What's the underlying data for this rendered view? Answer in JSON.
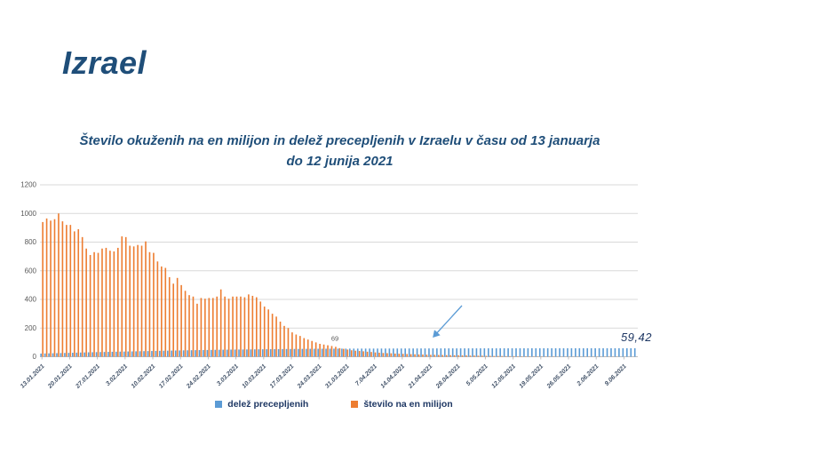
{
  "slide": {
    "title": "Izrael"
  },
  "chart": {
    "title": "Število okuženih na en milijon in delež precepljenih v Izraelu v času od 13 januarja do 12 junija 2021",
    "legend": [
      {
        "label": "delež precepljenih",
        "color": "#5B9BD5"
      },
      {
        "label": "število na en milijon",
        "color": "#ED7D31"
      }
    ]
  },
  "colors": {
    "blue": "#5B9BD5",
    "orange": "#ED7D31",
    "grid": "#D9D9D9",
    "axis": "#BFBFBF",
    "title_text": "#1F4E79",
    "legend_text": "#1F3864",
    "ytick_text": "#595959",
    "xtick_text": "#44546A"
  },
  "chart_data": {
    "type": "bar",
    "title": "Število okuženih na en milijon in delež precepljenih v Izraelu v času od 13 januarja do 12 junija 2021",
    "xlabel": "",
    "ylabel": "",
    "ylim": [
      0,
      1200
    ],
    "y_ticks": [
      0,
      200,
      400,
      600,
      800,
      1000,
      1200
    ],
    "grid": true,
    "legend_position": "bottom",
    "start_date": "13.01.2021",
    "end_date": "12.06.2021",
    "tick_every_days": 7,
    "tick_labels": [
      "13.01.2021",
      "20.01.2021",
      "27.01.2021",
      "3.02.2021",
      "10.02.2021",
      "17.02.2021",
      "24.02.2021",
      "3.03.2021",
      "10.03.2021",
      "17.03.2021",
      "24.03.2021",
      "31.03.2021",
      "7.04.2021",
      "14.04.2021",
      "21.04.2021",
      "28.04.2021",
      "5.05.2021",
      "12.05.2021",
      "19.05.2021",
      "26.05.2021",
      "2.06.2021",
      "9.06.2021"
    ],
    "series": [
      {
        "name": "delež precepljenih",
        "color": "#5B9BD5",
        "values": [
          22,
          22.8,
          23.6,
          24.3,
          25,
          25.7,
          26.4,
          27,
          27.8,
          28.5,
          29.2,
          30,
          30.7,
          31.4,
          32,
          32.6,
          33.2,
          33.8,
          34.4,
          35,
          35.5,
          36,
          36.6,
          37.2,
          37.8,
          38.4,
          39,
          39.5,
          40,
          40.6,
          41.2,
          41.8,
          42.4,
          43,
          43.5,
          44,
          44.5,
          45,
          45.4,
          45.9,
          46.3,
          46.7,
          47,
          47.5,
          48,
          48.4,
          48.9,
          49.3,
          49.7,
          50,
          50.3,
          50.6,
          50.9,
          51.2,
          51.5,
          51.8,
          52,
          52.3,
          52.6,
          52.9,
          53.2,
          53.5,
          53.8,
          54,
          54.2,
          54.4,
          54.7,
          54.9,
          55.1,
          55.3,
          55.5,
          55.7,
          55.8,
          56,
          56.1,
          56.3,
          56.4,
          56.5,
          56.6,
          56.7,
          56.8,
          56.8,
          56.9,
          57,
          57,
          57.1,
          57.2,
          57.2,
          57.3,
          57.4,
          57.5,
          57.5,
          57.6,
          57.7,
          57.7,
          57.8,
          57.9,
          58,
          58,
          58.1,
          58.1,
          58.2,
          58.2,
          58.3,
          58.3,
          58.3,
          58.4,
          58.4,
          58.5,
          58.5,
          58.6,
          58.6,
          58.6,
          58.7,
          58.7,
          58.7,
          58.8,
          58.8,
          58.8,
          58.8,
          58.9,
          58.9,
          58.9,
          59,
          59,
          59,
          59,
          59,
          59.1,
          59.1,
          59.1,
          59.1,
          59.1,
          59.1,
          59.2,
          59.2,
          59.2,
          59.2,
          59.2,
          59.3,
          59.3,
          59.3,
          59.3,
          59.3,
          59.4,
          59.4,
          59.4,
          59.4,
          59.4,
          59.4,
          59.42
        ]
      },
      {
        "name": "število na en milijon",
        "color": "#ED7D31",
        "values": [
          940,
          965,
          950,
          960,
          1000,
          945,
          920,
          920,
          875,
          890,
          835,
          755,
          710,
          730,
          725,
          755,
          760,
          740,
          735,
          760,
          840,
          835,
          775,
          770,
          780,
          775,
          805,
          730,
          725,
          665,
          630,
          620,
          555,
          510,
          550,
          500,
          460,
          430,
          420,
          370,
          410,
          405,
          410,
          410,
          420,
          470,
          420,
          405,
          420,
          420,
          420,
          415,
          435,
          425,
          415,
          385,
          350,
          330,
          300,
          280,
          245,
          215,
          200,
          170,
          155,
          145,
          130,
          120,
          110,
          100,
          90,
          85,
          80,
          75,
          69,
          60,
          55,
          50,
          45,
          42,
          40,
          38,
          35,
          33,
          30,
          28,
          26,
          25,
          24,
          22,
          21,
          20,
          19,
          18,
          17,
          16,
          15,
          14,
          13,
          13,
          12,
          12,
          11,
          11,
          10,
          10,
          9,
          9,
          8,
          8,
          7,
          7,
          6,
          6,
          5,
          5,
          5,
          4,
          4,
          4,
          3,
          3,
          3,
          3,
          2,
          2,
          2,
          2,
          2,
          2,
          1,
          1,
          1,
          1,
          1,
          1,
          1,
          1,
          1,
          1,
          1,
          1,
          1,
          1,
          1,
          1,
          0,
          0,
          0,
          0,
          0
        ]
      }
    ],
    "annotations": [
      {
        "text": "69",
        "series": "število na en milijon",
        "day_index": 74,
        "value": 69,
        "style": "small"
      },
      {
        "text": "59,42",
        "series": "delež precepljenih",
        "day_index": 150,
        "value": 59.42,
        "style": "emphasis"
      }
    ]
  }
}
